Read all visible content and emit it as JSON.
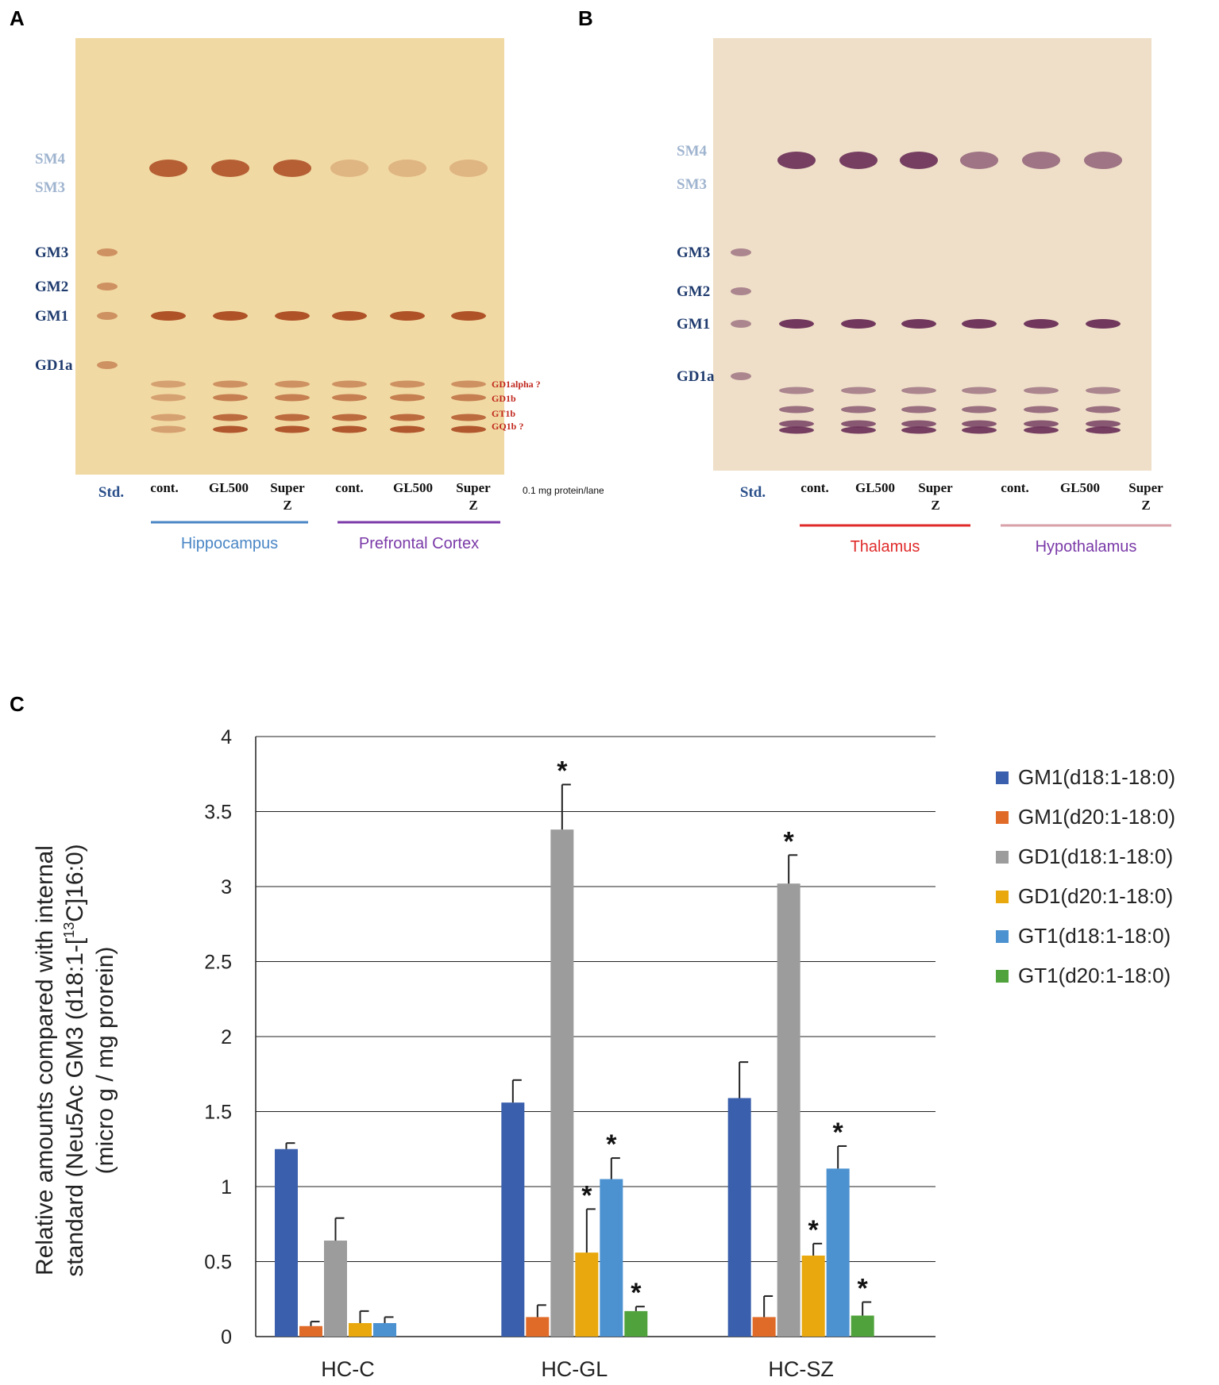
{
  "panel_labels": [
    "A",
    "B",
    "C"
  ],
  "tlc_plates": [
    {
      "id": "A",
      "left_markers": [
        "SM4",
        "SM3",
        "GM3",
        "GM2",
        "GM1",
        "GD1a"
      ],
      "right_markers": [
        "GD1alpha ?",
        "GD1b",
        "GT1b",
        "GQ1b ?"
      ],
      "lane_labels": [
        "Std.",
        "cont.",
        "GL500",
        "Super Z",
        "cont.",
        "GL500",
        "Super Z"
      ],
      "note": "0.1 mg protein/lane",
      "groups": [
        {
          "name": "Hippocampus",
          "color": "#4a86c5"
        },
        {
          "name": "Prefrontal Cortex",
          "color": "#7a3aa8"
        }
      ],
      "plate_color": "#f1d9a3",
      "band_color": "#a33a12"
    },
    {
      "id": "B",
      "left_markers": [
        "SM4",
        "SM3",
        "GM3",
        "GM2",
        "GM1",
        "GD1a"
      ],
      "right_markers": [],
      "lane_labels": [
        "Std.",
        "cont.",
        "GL500",
        "Super Z",
        "cont.",
        "GL500",
        "Super Z"
      ],
      "note": "",
      "groups": [
        {
          "name": "Thalamus",
          "color": "#e02a2a"
        },
        {
          "name": "Hypothalamus",
          "color": "#d8a0a8"
        }
      ],
      "group_text_colors": [
        "#e02a2a",
        "#7a3aa8"
      ],
      "plate_color": "#efdfc8",
      "band_color": "#5a1a4a"
    }
  ],
  "chart_data": {
    "type": "bar",
    "title": "",
    "xlabel": "",
    "ylabel": "Relative amounts compared with internal standard (Neu5Ac GM3 (d18:1-[13C]16:0) (micro g / mg prorein)",
    "ylabel_lines": [
      "Relative amounts compared with internal",
      "standard (Neu5Ac GM3 (d18:1-[",
      "13",
      "C]16:0)",
      "(micro g / mg prorein)"
    ],
    "ylim": [
      0,
      4
    ],
    "yticks": [
      "0",
      "0.5",
      "1",
      "1.5",
      "2",
      "2.5",
      "3",
      "3.5",
      "4"
    ],
    "grid": true,
    "legend_position": "right",
    "categories": [
      "HC-C",
      "HC-GL",
      "HC-SZ"
    ],
    "series": [
      {
        "name": "GM1(d18:1-18:0)",
        "color": "#3a5fac",
        "values": [
          1.25,
          1.56,
          1.59
        ],
        "errors": [
          0.04,
          0.15,
          0.24
        ],
        "significant": [
          false,
          false,
          false
        ]
      },
      {
        "name": "GM1(d20:1-18:0)",
        "color": "#e06a28",
        "values": [
          0.07,
          0.13,
          0.13
        ],
        "errors": [
          0.03,
          0.08,
          0.14
        ],
        "significant": [
          false,
          false,
          false
        ]
      },
      {
        "name": "GD1(d18:1-18:0)",
        "color": "#9c9c9c",
        "values": [
          0.64,
          3.38,
          3.02
        ],
        "errors": [
          0.15,
          0.3,
          0.19
        ],
        "significant": [
          false,
          true,
          true
        ]
      },
      {
        "name": "GD1(d20:1-18:0)",
        "color": "#e8a80e",
        "values": [
          0.09,
          0.56,
          0.54
        ],
        "errors": [
          0.08,
          0.29,
          0.08
        ],
        "significant": [
          false,
          true,
          true
        ]
      },
      {
        "name": "GT1(d18:1-18:0)",
        "color": "#4c92d0",
        "values": [
          0.09,
          1.05,
          1.12
        ],
        "errors": [
          0.04,
          0.14,
          0.15
        ],
        "significant": [
          false,
          true,
          true
        ]
      },
      {
        "name": "GT1(d20:1-18:0)",
        "color": "#50a33c",
        "values": [
          0.0,
          0.17,
          0.14
        ],
        "errors": [
          0.0,
          0.03,
          0.09
        ],
        "significant": [
          false,
          true,
          true
        ]
      }
    ],
    "significance_marker": "*"
  }
}
